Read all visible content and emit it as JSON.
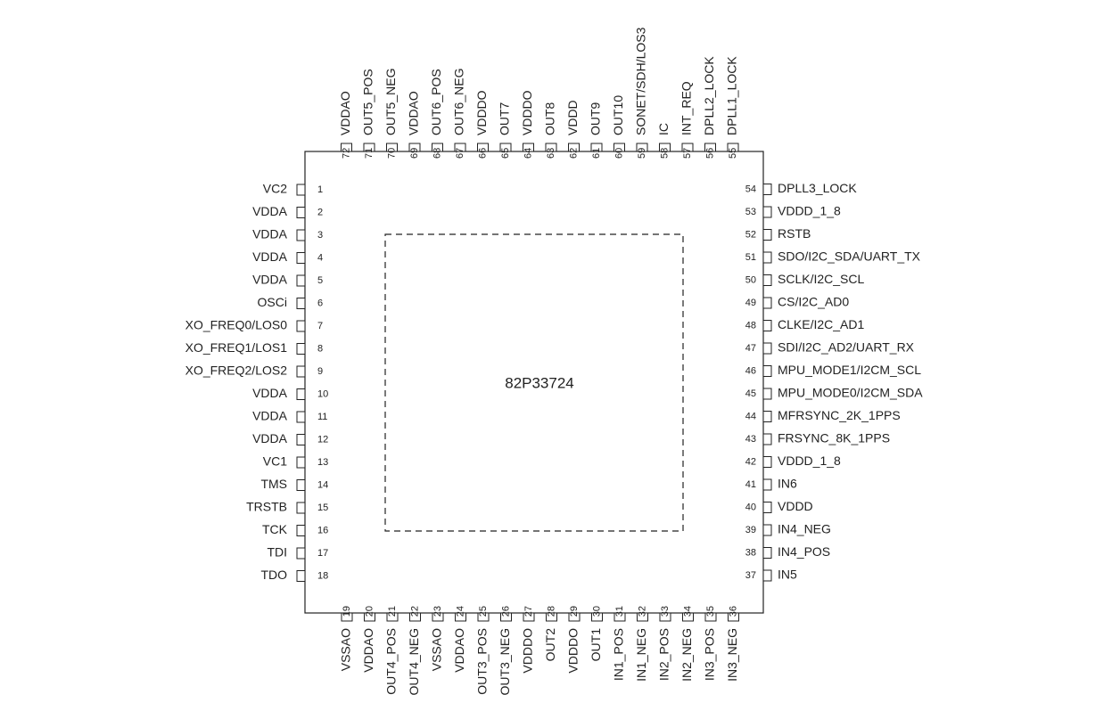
{
  "chip": {
    "name": "82P33724",
    "pins": {
      "left": [
        {
          "number": 1,
          "label": "VC2"
        },
        {
          "number": 2,
          "label": "VDDA"
        },
        {
          "number": 3,
          "label": "VDDA"
        },
        {
          "number": 4,
          "label": "VDDA"
        },
        {
          "number": 5,
          "label": "VDDA"
        },
        {
          "number": 6,
          "label": "OSCi"
        },
        {
          "number": 7,
          "label": "XO_FREQ0/LOS0"
        },
        {
          "number": 8,
          "label": "XO_FREQ1/LOS1"
        },
        {
          "number": 9,
          "label": "XO_FREQ2/LOS2"
        },
        {
          "number": 10,
          "label": "VDDA"
        },
        {
          "number": 11,
          "label": "VDDA"
        },
        {
          "number": 12,
          "label": "VDDA"
        },
        {
          "number": 13,
          "label": "VC1"
        },
        {
          "number": 14,
          "label": "TMS"
        },
        {
          "number": 15,
          "label": "TRSTB"
        },
        {
          "number": 16,
          "label": "TCK"
        },
        {
          "number": 17,
          "label": "TDI"
        },
        {
          "number": 18,
          "label": "TDO"
        }
      ],
      "bottom": [
        {
          "number": 19,
          "label": "VSSAO"
        },
        {
          "number": 20,
          "label": "VDDAO"
        },
        {
          "number": 21,
          "label": "OUT4_POS"
        },
        {
          "number": 22,
          "label": "OUT4_NEG"
        },
        {
          "number": 23,
          "label": "VSSAO"
        },
        {
          "number": 24,
          "label": "VDDAO"
        },
        {
          "number": 25,
          "label": "OUT3_POS"
        },
        {
          "number": 26,
          "label": "OUT3_NEG"
        },
        {
          "number": 27,
          "label": "VDDDO"
        },
        {
          "number": 28,
          "label": "OUT2"
        },
        {
          "number": 29,
          "label": "VDDDO"
        },
        {
          "number": 30,
          "label": "OUT1"
        },
        {
          "number": 31,
          "label": "IN1_POS"
        },
        {
          "number": 32,
          "label": "IN1_NEG"
        },
        {
          "number": 33,
          "label": "IN2_POS"
        },
        {
          "number": 34,
          "label": "IN2_NEG"
        },
        {
          "number": 35,
          "label": "IN3_POS"
        },
        {
          "number": 36,
          "label": "IN3_NEG"
        }
      ],
      "right": [
        {
          "number": 37,
          "label": "IN5"
        },
        {
          "number": 38,
          "label": "IN4_POS"
        },
        {
          "number": 39,
          "label": "IN4_NEG"
        },
        {
          "number": 40,
          "label": "VDDD"
        },
        {
          "number": 41,
          "label": "IN6"
        },
        {
          "number": 42,
          "label": "VDDD_1_8"
        },
        {
          "number": 43,
          "label": "FRSYNC_8K_1PPS"
        },
        {
          "number": 44,
          "label": "MFRSYNC_2K_1PPS"
        },
        {
          "number": 45,
          "label": "MPU_MODE0/I2CM_SDA"
        },
        {
          "number": 46,
          "label": "MPU_MODE1/I2CM_SCL"
        },
        {
          "number": 47,
          "label": "SDI/I2C_AD2/UART_RX"
        },
        {
          "number": 48,
          "label": "CLKE/I2C_AD1"
        },
        {
          "number": 49,
          "label": "CS/I2C_AD0"
        },
        {
          "number": 50,
          "label": "SCLK/I2C_SCL"
        },
        {
          "number": 51,
          "label": "SDO/I2C_SDA/UART_TX"
        },
        {
          "number": 52,
          "label": "RSTB"
        },
        {
          "number": 53,
          "label": "VDDD_1_8"
        },
        {
          "number": 54,
          "label": "DPLL3_LOCK"
        }
      ],
      "top": [
        {
          "number": 55,
          "label": "DPLL1_LOCK"
        },
        {
          "number": 56,
          "label": "DPLL2_LOCK"
        },
        {
          "number": 57,
          "label": "INT_REQ"
        },
        {
          "number": 58,
          "label": "IC"
        },
        {
          "number": 59,
          "label": "SONET/SDH/LOS3"
        },
        {
          "number": 60,
          "label": "OUT10"
        },
        {
          "number": 61,
          "label": "OUT9"
        },
        {
          "number": 62,
          "label": "VDDD"
        },
        {
          "number": 63,
          "label": "OUT8"
        },
        {
          "number": 64,
          "label": "VDDDO"
        },
        {
          "number": 65,
          "label": "OUT7"
        },
        {
          "number": 66,
          "label": "VDDDO"
        },
        {
          "number": 67,
          "label": "OUT6_NEG"
        },
        {
          "number": 68,
          "label": "OUT6_POS"
        },
        {
          "number": 69,
          "label": "VDDAO"
        },
        {
          "number": 70,
          "label": "OUT5_NEG"
        },
        {
          "number": 71,
          "label": "OUT5_POS"
        },
        {
          "number": 72,
          "label": "VDDAO"
        }
      ]
    }
  }
}
